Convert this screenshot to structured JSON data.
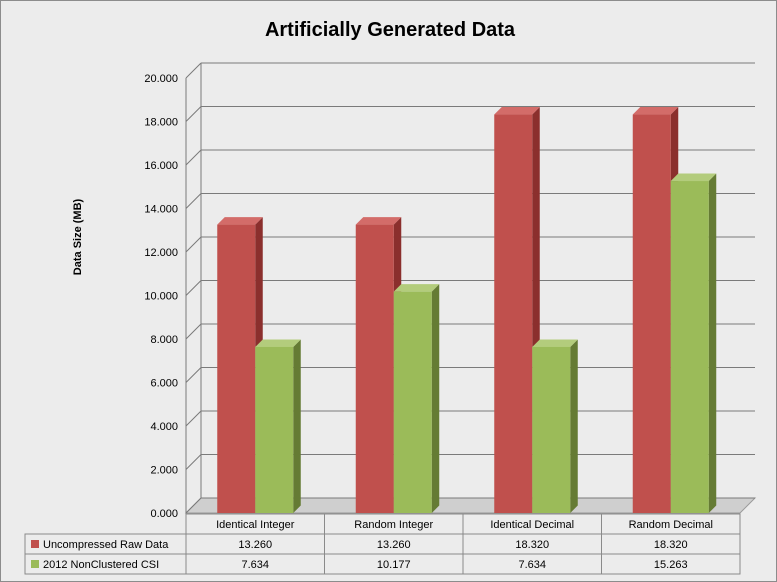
{
  "chart_data": {
    "type": "bar",
    "title": "Artificially Generated Data",
    "ylabel": "Data Size (MB)",
    "xlabel": "",
    "ylim": [
      0,
      20
    ],
    "yticks": [
      "0.000",
      "2.000",
      "4.000",
      "6.000",
      "8.000",
      "10.000",
      "12.000",
      "14.000",
      "16.000",
      "18.000",
      "20.000"
    ],
    "grid": true,
    "legend": "data-table-left",
    "categories": [
      "Identical Integer",
      "Random Integer",
      "Identical Decimal",
      "Random Decimal"
    ],
    "series": [
      {
        "name": "Uncompressed Raw Data",
        "values": [
          13.26,
          13.26,
          18.32,
          18.32
        ],
        "labels": [
          "13.260",
          "13.260",
          "18.320",
          "18.320"
        ],
        "color": "#c0504d",
        "side_color": "#8b2f2d",
        "top_color": "#d36c69"
      },
      {
        "name": "2012 NonClustered CSI",
        "values": [
          7.634,
          10.177,
          7.634,
          15.263
        ],
        "labels": [
          "7.634",
          "10.177",
          "7.634",
          "15.263"
        ],
        "color": "#9bbb59",
        "side_color": "#657b34",
        "top_color": "#b3cc7c"
      }
    ]
  }
}
